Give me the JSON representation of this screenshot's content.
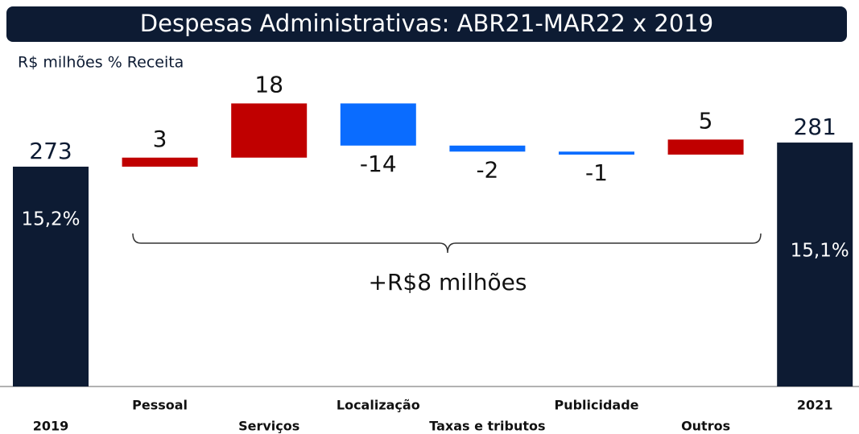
{
  "chart_data": {
    "type": "waterfall",
    "title": "Despesas Administrativas: ABR21-MAR22 x 2019",
    "subtitle": "R$ milhões % Receita",
    "categories": [
      "2019",
      "Pessoal",
      "Serviços",
      "Localização",
      "Taxas e tributos",
      "Publicidade",
      "Outros",
      "2021"
    ],
    "values": [
      273,
      3,
      18,
      -14,
      -2,
      -1,
      5,
      281
    ],
    "total_labels": [
      "15,2%",
      "15,1%"
    ],
    "annotation": "+R$8 milhões",
    "ylim": [
      200,
      300
    ],
    "total_color": "#0d1b33",
    "positive_color": "#c00000",
    "negative_color": "#0a6cff"
  }
}
